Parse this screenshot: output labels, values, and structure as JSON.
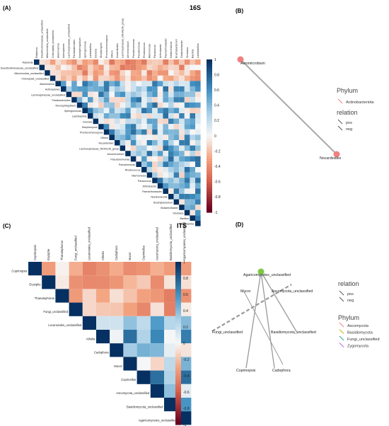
{
  "figure": {
    "panels": [
      {
        "letter": "(A)",
        "title": "16S"
      },
      {
        "letter": "(B)",
        "title": ""
      },
      {
        "letter": "(C)",
        "title": "ITS"
      },
      {
        "letter": "(D)",
        "title": ""
      }
    ]
  },
  "chart_data": [
    {
      "type": "heatmap",
      "title": "16S",
      "labels": [
        "Ralstonia",
        "Desulfovibrionaceae_unclassified",
        "Mitochondria_unclassified",
        "Chloroplast_unclassified",
        "Akkermansia",
        "Actinoplanes",
        "Lachnospiraceae_unclassified",
        "Parabacteroides",
        "Novosphingobium",
        "Sphingomonas",
        "Lactobacillus",
        "Devosia",
        "Streptomyces",
        "Promicromonospora",
        "Others",
        "Nocardioides",
        "Lachnospiraceae_NK4A136_group",
        "Aeromicrobium",
        "Pseudonomonas",
        "Pseudomonas",
        "Rhodococcus",
        "Marmoricola",
        "Paracoccus",
        "Arthrobacter",
        "Paenarthrobacter",
        "Nesterenkonia",
        "Brachybacterium",
        "Glutamicibacter",
        "Sinobaca",
        "Bacillus",
        "Lactobacillus"
      ],
      "colorbar": {
        "ticks": [
          "1",
          "0.8",
          "0.6",
          "0.4",
          "0.2",
          "0",
          "-0.2",
          "-0.4",
          "-0.6",
          "-0.8",
          "-1"
        ]
      }
    },
    {
      "type": "heatmap",
      "title": "ITS",
      "labels": [
        "Coprinopsis",
        "Erysiphe",
        "Thanatephorus",
        "Fungi_unclassified",
        "Lecanorales_unclassified",
        "Athelia",
        "Cadophora",
        "Mucor",
        "Coprinellus",
        "Ascomycota_unclassified",
        "Basidiomycota_unclassified",
        "Agaricomycetes_unclassified"
      ],
      "colorbar": {
        "ticks": [
          "1",
          "0.8",
          "0.6",
          "0.4",
          "0.2",
          "0",
          "-0.2",
          "-0.4",
          "-0.6",
          "-0.8",
          "-1"
        ]
      }
    }
  ],
  "network_b": {
    "nodes": [
      {
        "label": "Aeromicrobium",
        "color": "#f08080"
      },
      {
        "label": "Nocardioides",
        "color": "#f08080"
      }
    ],
    "legend": {
      "phylum_title": "Phylum",
      "phylum": [
        {
          "label": "Actinobacteriota",
          "color": "#f08080"
        }
      ],
      "relation_title": "relation",
      "relation": [
        {
          "label": "pos",
          "color": "#555555"
        },
        {
          "label": "neg",
          "color": "#555555"
        }
      ]
    }
  },
  "network_d": {
    "nodes": [
      {
        "label": "Agaricomycetes_unclassified",
        "color": "#7cc843"
      },
      {
        "label": "Mucor",
        "color": "#888888"
      },
      {
        "label": "Ascomycota_unclassified",
        "color": "#888888"
      },
      {
        "label": "Fungi_unclassified",
        "color": "#888888"
      },
      {
        "label": "Basidiomycota_unclassified",
        "color": "#888888"
      },
      {
        "label": "Coprinopsis",
        "color": "#888888"
      },
      {
        "label": "Cadophora",
        "color": "#888888"
      }
    ],
    "legend": {
      "relation_title": "relation",
      "relation": [
        {
          "label": "pos",
          "color": "#555555"
        },
        {
          "label": "neg",
          "color": "#555555"
        }
      ],
      "phylum_title": "Phylum",
      "phylum": [
        {
          "label": "Ascomycota",
          "color": "#f08080"
        },
        {
          "label": "Basidiomycota",
          "color": "#c8b400"
        },
        {
          "label": "Fungi_unclassified",
          "color": "#2aa198"
        },
        {
          "label": "Zygomycota",
          "color": "#b06ad8"
        }
      ]
    }
  }
}
